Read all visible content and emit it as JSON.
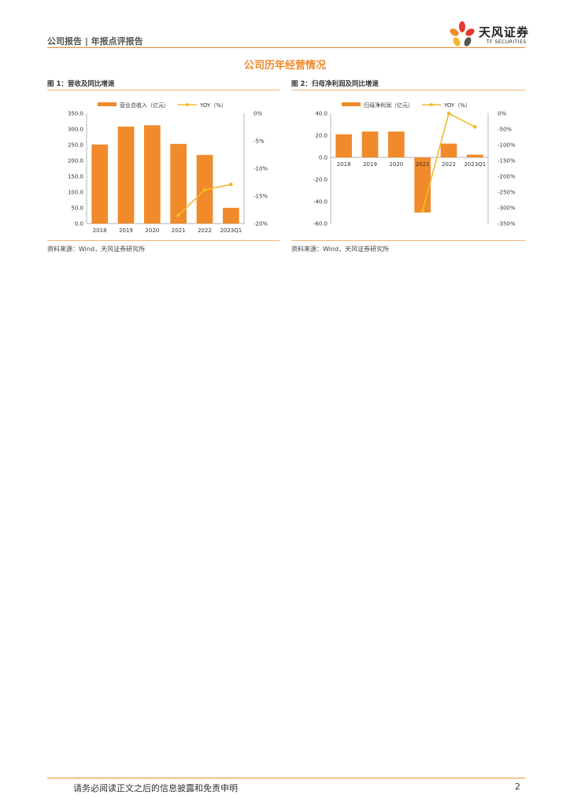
{
  "header": {
    "category": "公司报告 | 年报点评报告",
    "logo_cn": "天风证券",
    "logo_en": "TF SECURITIES"
  },
  "section_title": "公司历年经营情况",
  "figures": [
    {
      "title": "图 1：营收及同比增速",
      "source": "资料来源：Wind，天风证券研究所"
    },
    {
      "title": "图 2：归母净利润及同比增速",
      "source": "资料来源：Wind，天风证券研究所"
    }
  ],
  "colors": {
    "bar": "#F08A2A",
    "line": "#F5B82E",
    "accent": "#F08A2A"
  },
  "chart_data": [
    {
      "type": "bar",
      "categories": [
        "2018",
        "2019",
        "2020",
        "2021",
        "2022",
        "2023Q1"
      ],
      "series": [
        {
          "name": "营业总收入（亿元）",
          "type": "bar",
          "axis": "left",
          "values": [
            251,
            308,
            312,
            253,
            218,
            50
          ]
        },
        {
          "name": "YOY（%）",
          "type": "line",
          "axis": "right",
          "values": [
            null,
            null,
            null,
            -18.5,
            -13.9,
            -12.9
          ]
        }
      ],
      "y_left": {
        "min": 0,
        "max": 350,
        "ticks": [
          "0.0",
          "50.0",
          "100.0",
          "150.0",
          "200.0",
          "250.0",
          "300.0",
          "350.0"
        ]
      },
      "y_right": {
        "min": -20,
        "max": 0,
        "ticks": [
          "0%",
          "-5%",
          "-10%",
          "-15%",
          "-20%"
        ]
      },
      "legend": "top"
    },
    {
      "type": "bar",
      "categories": [
        "2018",
        "2019",
        "2020",
        "2021",
        "2022",
        "2023Q1"
      ],
      "series": [
        {
          "name": "归母净利润（亿元）",
          "type": "bar",
          "axis": "left",
          "values": [
            21,
            23.5,
            23.5,
            -50,
            12.5,
            2.5
          ]
        },
        {
          "name": "YOY（%）",
          "type": "line",
          "axis": "right",
          "values": [
            null,
            null,
            null,
            -310,
            0,
            -43
          ]
        }
      ],
      "y_left": {
        "min": -60,
        "max": 40,
        "ticks": [
          "40.0",
          "20.0",
          "0.0",
          "-20.0",
          "-40.0",
          "-60.0"
        ]
      },
      "y_right": {
        "min": -350,
        "max": 0,
        "ticks": [
          "0%",
          "-50%",
          "-100%",
          "-150%",
          "-200%",
          "-250%",
          "-300%",
          "-350%"
        ]
      },
      "legend": "top"
    }
  ],
  "footer": {
    "disclaimer": "请务必阅读正文之后的信息披露和免责申明",
    "page": "2"
  }
}
